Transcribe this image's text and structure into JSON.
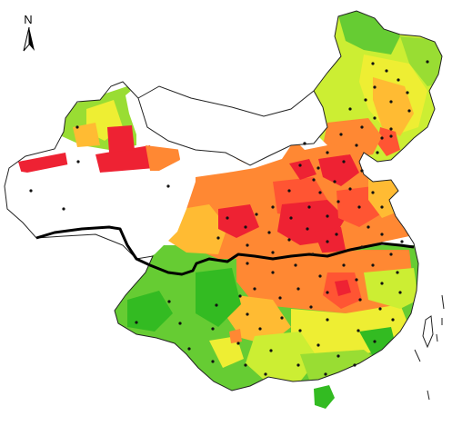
{
  "north_arrow": {
    "label": "N"
  },
  "colors": {
    "background": "#ffffff",
    "border": "#222222",
    "divide_line": "#000000",
    "station": "#111111",
    "green_dark": "#33bb22",
    "green": "#66cc33",
    "green_light": "#99dd33",
    "yellow_green": "#ccee33",
    "yellow": "#eeee33",
    "orange_light": "#ffbb33",
    "orange": "#ff8833",
    "red_orange": "#ff5533",
    "red": "#ee2233"
  },
  "icons": {
    "north": "north-arrow-icon",
    "station": "station-dot"
  }
}
